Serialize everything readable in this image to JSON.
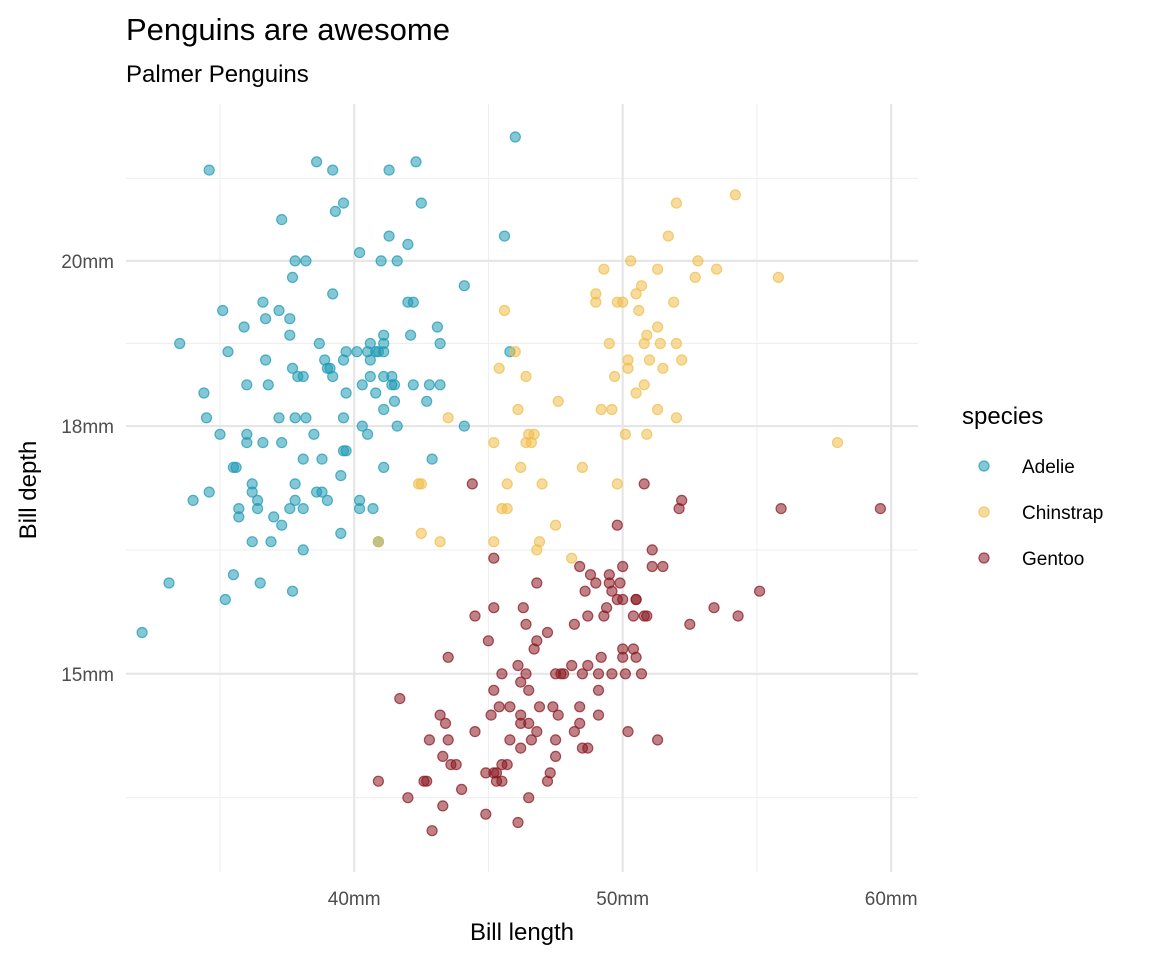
{
  "chart_data": {
    "type": "scatter",
    "title": "Penguins are awesome",
    "subtitle": "Palmer Penguins",
    "xlabel": "Bill length",
    "ylabel": "Bill depth",
    "xlim": [
      31.5,
      61
    ],
    "ylim": [
      12.6,
      21.9
    ],
    "x_ticks": [
      {
        "value": 40,
        "label": "40mm"
      },
      {
        "value": 50,
        "label": "50mm"
      },
      {
        "value": 60,
        "label": "60mm"
      }
    ],
    "y_ticks": [
      {
        "value": 15,
        "label": "15mm"
      },
      {
        "value": 18,
        "label": "18mm"
      },
      {
        "value": 20,
        "label": "20mm"
      }
    ],
    "grid": true,
    "legend": {
      "title": "species",
      "position": "right"
    },
    "series": [
      {
        "name": "Adelie",
        "color": "#1f9ab5",
        "points": [
          [
            32.1,
            15.5
          ],
          [
            33.1,
            16.1
          ],
          [
            33.5,
            19.0
          ],
          [
            34.0,
            17.1
          ],
          [
            34.4,
            18.4
          ],
          [
            34.5,
            18.1
          ],
          [
            34.6,
            21.1
          ],
          [
            34.6,
            17.2
          ],
          [
            35.0,
            17.9
          ],
          [
            35.1,
            19.4
          ],
          [
            35.2,
            15.9
          ],
          [
            35.3,
            18.9
          ],
          [
            35.5,
            16.2
          ],
          [
            35.5,
            17.5
          ],
          [
            35.6,
            17.5
          ],
          [
            35.7,
            16.9
          ],
          [
            35.7,
            17.0
          ],
          [
            35.9,
            19.2
          ],
          [
            36.0,
            18.5
          ],
          [
            36.0,
            17.9
          ],
          [
            36.0,
            17.8
          ],
          [
            36.2,
            16.6
          ],
          [
            36.2,
            17.2
          ],
          [
            36.2,
            17.3
          ],
          [
            36.4,
            17.1
          ],
          [
            36.4,
            17.0
          ],
          [
            36.5,
            16.1
          ],
          [
            36.6,
            19.5
          ],
          [
            36.6,
            17.8
          ],
          [
            36.7,
            19.3
          ],
          [
            36.7,
            18.8
          ],
          [
            36.8,
            18.5
          ],
          [
            36.9,
            16.6
          ],
          [
            37.0,
            16.9
          ],
          [
            37.2,
            19.4
          ],
          [
            37.2,
            18.1
          ],
          [
            37.3,
            16.8
          ],
          [
            37.3,
            17.8
          ],
          [
            37.3,
            20.5
          ],
          [
            37.6,
            19.1
          ],
          [
            37.6,
            19.3
          ],
          [
            37.6,
            17.0
          ],
          [
            37.7,
            18.7
          ],
          [
            37.7,
            16.0
          ],
          [
            37.7,
            19.8
          ],
          [
            37.8,
            17.1
          ],
          [
            37.8,
            17.3
          ],
          [
            37.8,
            18.1
          ],
          [
            37.8,
            20.0
          ],
          [
            37.9,
            18.6
          ],
          [
            38.1,
            18.6
          ],
          [
            38.1,
            17.6
          ],
          [
            38.1,
            17.0
          ],
          [
            38.1,
            16.5
          ],
          [
            38.2,
            18.1
          ],
          [
            38.2,
            20.0
          ],
          [
            38.5,
            17.9
          ],
          [
            38.6,
            21.2
          ],
          [
            38.6,
            17.2
          ],
          [
            38.7,
            19.0
          ],
          [
            38.8,
            17.2
          ],
          [
            38.8,
            17.6
          ],
          [
            38.9,
            18.8
          ],
          [
            39.0,
            17.1
          ],
          [
            39.0,
            18.7
          ],
          [
            39.1,
            18.7
          ],
          [
            39.2,
            21.1
          ],
          [
            39.2,
            18.6
          ],
          [
            39.2,
            19.6
          ],
          [
            39.3,
            20.6
          ],
          [
            39.5,
            16.7
          ],
          [
            39.5,
            17.4
          ],
          [
            39.6,
            17.7
          ],
          [
            39.6,
            18.8
          ],
          [
            39.6,
            18.1
          ],
          [
            39.6,
            20.7
          ],
          [
            39.7,
            17.7
          ],
          [
            39.7,
            18.4
          ],
          [
            39.7,
            18.9
          ],
          [
            40.1,
            18.9
          ],
          [
            40.2,
            17.0
          ],
          [
            40.2,
            17.1
          ],
          [
            40.2,
            20.1
          ],
          [
            40.3,
            18.0
          ],
          [
            40.3,
            18.5
          ],
          [
            40.5,
            17.9
          ],
          [
            40.5,
            18.9
          ],
          [
            40.6,
            18.6
          ],
          [
            40.6,
            18.8
          ],
          [
            40.6,
            19.0
          ],
          [
            40.7,
            17.0
          ],
          [
            40.8,
            18.4
          ],
          [
            40.8,
            18.9
          ],
          [
            40.9,
            16.6
          ],
          [
            40.9,
            18.9
          ],
          [
            41.0,
            20.0
          ],
          [
            41.1,
            17.5
          ],
          [
            41.1,
            18.2
          ],
          [
            41.1,
            18.6
          ],
          [
            41.1,
            18.9
          ],
          [
            41.1,
            19.0
          ],
          [
            41.1,
            19.1
          ],
          [
            41.3,
            20.3
          ],
          [
            41.3,
            21.1
          ],
          [
            41.4,
            18.5
          ],
          [
            41.4,
            18.6
          ],
          [
            41.5,
            18.5
          ],
          [
            41.5,
            18.3
          ],
          [
            41.6,
            18.0
          ],
          [
            41.6,
            20.0
          ],
          [
            42.0,
            19.5
          ],
          [
            42.0,
            20.2
          ],
          [
            42.1,
            19.1
          ],
          [
            42.2,
            18.5
          ],
          [
            42.2,
            19.5
          ],
          [
            42.3,
            21.2
          ],
          [
            42.5,
            20.7
          ],
          [
            42.7,
            18.3
          ],
          [
            42.8,
            18.5
          ],
          [
            42.9,
            17.6
          ],
          [
            43.1,
            19.2
          ],
          [
            43.2,
            19.0
          ],
          [
            43.2,
            18.5
          ],
          [
            44.1,
            18.0
          ],
          [
            44.1,
            19.7
          ],
          [
            45.6,
            20.3
          ],
          [
            45.8,
            18.9
          ],
          [
            46.0,
            21.5
          ]
        ]
      },
      {
        "name": "Chinstrap",
        "color": "#f0be4b",
        "points": [
          [
            40.9,
            16.6
          ],
          [
            42.4,
            17.3
          ],
          [
            42.5,
            17.3
          ],
          [
            42.5,
            16.7
          ],
          [
            43.2,
            16.6
          ],
          [
            43.5,
            18.1
          ],
          [
            45.2,
            17.8
          ],
          [
            45.2,
            16.6
          ],
          [
            45.4,
            18.7
          ],
          [
            45.5,
            17.0
          ],
          [
            45.6,
            19.4
          ],
          [
            45.7,
            17.3
          ],
          [
            45.7,
            17.0
          ],
          [
            46.0,
            18.9
          ],
          [
            46.1,
            18.2
          ],
          [
            46.2,
            17.5
          ],
          [
            46.4,
            18.6
          ],
          [
            46.4,
            17.8
          ],
          [
            46.5,
            17.9
          ],
          [
            46.6,
            17.8
          ],
          [
            46.7,
            17.9
          ],
          [
            46.8,
            16.5
          ],
          [
            46.9,
            16.6
          ],
          [
            47.0,
            17.3
          ],
          [
            47.5,
            16.8
          ],
          [
            47.6,
            18.3
          ],
          [
            48.1,
            16.4
          ],
          [
            48.5,
            17.5
          ],
          [
            49.0,
            19.5
          ],
          [
            49.0,
            19.6
          ],
          [
            49.2,
            18.2
          ],
          [
            49.3,
            19.9
          ],
          [
            49.5,
            19.0
          ],
          [
            49.6,
            18.2
          ],
          [
            49.7,
            18.6
          ],
          [
            49.8,
            17.3
          ],
          [
            49.8,
            19.5
          ],
          [
            50.0,
            19.5
          ],
          [
            50.1,
            17.9
          ],
          [
            50.2,
            18.7
          ],
          [
            50.2,
            18.8
          ],
          [
            50.3,
            20.0
          ],
          [
            50.5,
            18.4
          ],
          [
            50.5,
            19.6
          ],
          [
            50.6,
            19.4
          ],
          [
            50.7,
            19.7
          ],
          [
            50.8,
            18.5
          ],
          [
            50.8,
            19.0
          ],
          [
            50.9,
            17.9
          ],
          [
            50.9,
            19.1
          ],
          [
            51.0,
            18.8
          ],
          [
            51.3,
            18.2
          ],
          [
            51.3,
            19.2
          ],
          [
            51.3,
            19.9
          ],
          [
            51.4,
            19.0
          ],
          [
            51.5,
            18.7
          ],
          [
            51.7,
            20.3
          ],
          [
            51.9,
            19.5
          ],
          [
            52.0,
            18.1
          ],
          [
            52.0,
            19.0
          ],
          [
            52.0,
            20.7
          ],
          [
            52.2,
            18.8
          ],
          [
            52.7,
            19.8
          ],
          [
            52.8,
            20.0
          ],
          [
            53.5,
            19.9
          ],
          [
            54.2,
            20.8
          ],
          [
            55.8,
            19.8
          ],
          [
            58.0,
            17.8
          ]
        ]
      },
      {
        "name": "Gentoo",
        "color": "#8b1a22",
        "points": [
          [
            40.9,
            13.7
          ],
          [
            41.7,
            14.7
          ],
          [
            42.0,
            13.5
          ],
          [
            42.6,
            13.7
          ],
          [
            42.7,
            13.7
          ],
          [
            42.8,
            14.2
          ],
          [
            42.9,
            13.1
          ],
          [
            43.2,
            14.5
          ],
          [
            43.3,
            13.4
          ],
          [
            43.3,
            14.0
          ],
          [
            43.4,
            14.4
          ],
          [
            43.5,
            14.2
          ],
          [
            43.5,
            15.2
          ],
          [
            43.6,
            13.9
          ],
          [
            43.8,
            13.9
          ],
          [
            44.0,
            13.6
          ],
          [
            44.4,
            17.3
          ],
          [
            44.5,
            14.3
          ],
          [
            44.5,
            15.7
          ],
          [
            44.9,
            13.3
          ],
          [
            44.9,
            13.8
          ],
          [
            45.0,
            15.4
          ],
          [
            45.1,
            14.5
          ],
          [
            45.2,
            13.8
          ],
          [
            45.2,
            14.8
          ],
          [
            45.2,
            15.8
          ],
          [
            45.2,
            16.4
          ],
          [
            45.3,
            13.7
          ],
          [
            45.3,
            13.8
          ],
          [
            45.4,
            14.6
          ],
          [
            45.5,
            13.7
          ],
          [
            45.5,
            13.9
          ],
          [
            45.5,
            15.0
          ],
          [
            45.7,
            13.9
          ],
          [
            45.8,
            14.2
          ],
          [
            45.8,
            14.6
          ],
          [
            46.1,
            13.2
          ],
          [
            46.1,
            15.1
          ],
          [
            46.2,
            14.1
          ],
          [
            46.2,
            14.4
          ],
          [
            46.2,
            14.5
          ],
          [
            46.2,
            14.9
          ],
          [
            46.3,
            15.8
          ],
          [
            46.4,
            15.0
          ],
          [
            46.4,
            15.6
          ],
          [
            46.5,
            13.5
          ],
          [
            46.5,
            14.4
          ],
          [
            46.5,
            14.8
          ],
          [
            46.6,
            14.2
          ],
          [
            46.7,
            15.3
          ],
          [
            46.8,
            14.3
          ],
          [
            46.8,
            15.4
          ],
          [
            46.8,
            16.1
          ],
          [
            46.9,
            14.6
          ],
          [
            47.2,
            13.7
          ],
          [
            47.2,
            15.5
          ],
          [
            47.3,
            13.8
          ],
          [
            47.4,
            14.6
          ],
          [
            47.5,
            14.0
          ],
          [
            47.5,
            14.2
          ],
          [
            47.5,
            15.0
          ],
          [
            47.6,
            14.5
          ],
          [
            47.7,
            15.0
          ],
          [
            47.8,
            15.0
          ],
          [
            48.1,
            15.1
          ],
          [
            48.2,
            14.3
          ],
          [
            48.2,
            15.6
          ],
          [
            48.4,
            14.4
          ],
          [
            48.4,
            14.6
          ],
          [
            48.4,
            16.3
          ],
          [
            48.5,
            14.1
          ],
          [
            48.5,
            15.0
          ],
          [
            48.6,
            16.0
          ],
          [
            48.7,
            14.1
          ],
          [
            48.7,
            15.1
          ],
          [
            48.7,
            15.7
          ],
          [
            48.8,
            16.2
          ],
          [
            49.0,
            16.1
          ],
          [
            49.1,
            14.5
          ],
          [
            49.1,
            14.8
          ],
          [
            49.1,
            15.0
          ],
          [
            49.2,
            15.2
          ],
          [
            49.3,
            15.7
          ],
          [
            49.4,
            15.8
          ],
          [
            49.5,
            16.1
          ],
          [
            49.5,
            16.2
          ],
          [
            49.6,
            15.0
          ],
          [
            49.6,
            16.0
          ],
          [
            49.8,
            15.9
          ],
          [
            49.8,
            16.8
          ],
          [
            49.9,
            16.1
          ],
          [
            50.0,
            15.2
          ],
          [
            50.0,
            15.3
          ],
          [
            50.0,
            15.9
          ],
          [
            50.0,
            16.3
          ],
          [
            50.1,
            15.0
          ],
          [
            50.2,
            14.3
          ],
          [
            50.4,
            15.3
          ],
          [
            50.4,
            15.7
          ],
          [
            50.5,
            15.2
          ],
          [
            50.5,
            15.9
          ],
          [
            50.5,
            15.9
          ],
          [
            50.7,
            15.0
          ],
          [
            50.8,
            15.7
          ],
          [
            50.8,
            17.3
          ],
          [
            50.9,
            15.7
          ],
          [
            51.1,
            16.3
          ],
          [
            51.1,
            16.5
          ],
          [
            51.3,
            14.2
          ],
          [
            51.5,
            16.3
          ],
          [
            52.1,
            17.0
          ],
          [
            52.2,
            17.1
          ],
          [
            52.5,
            15.6
          ],
          [
            53.4,
            15.8
          ],
          [
            54.3,
            15.7
          ],
          [
            55.1,
            16.0
          ],
          [
            55.9,
            17.0
          ],
          [
            59.6,
            17.0
          ]
        ]
      }
    ]
  }
}
